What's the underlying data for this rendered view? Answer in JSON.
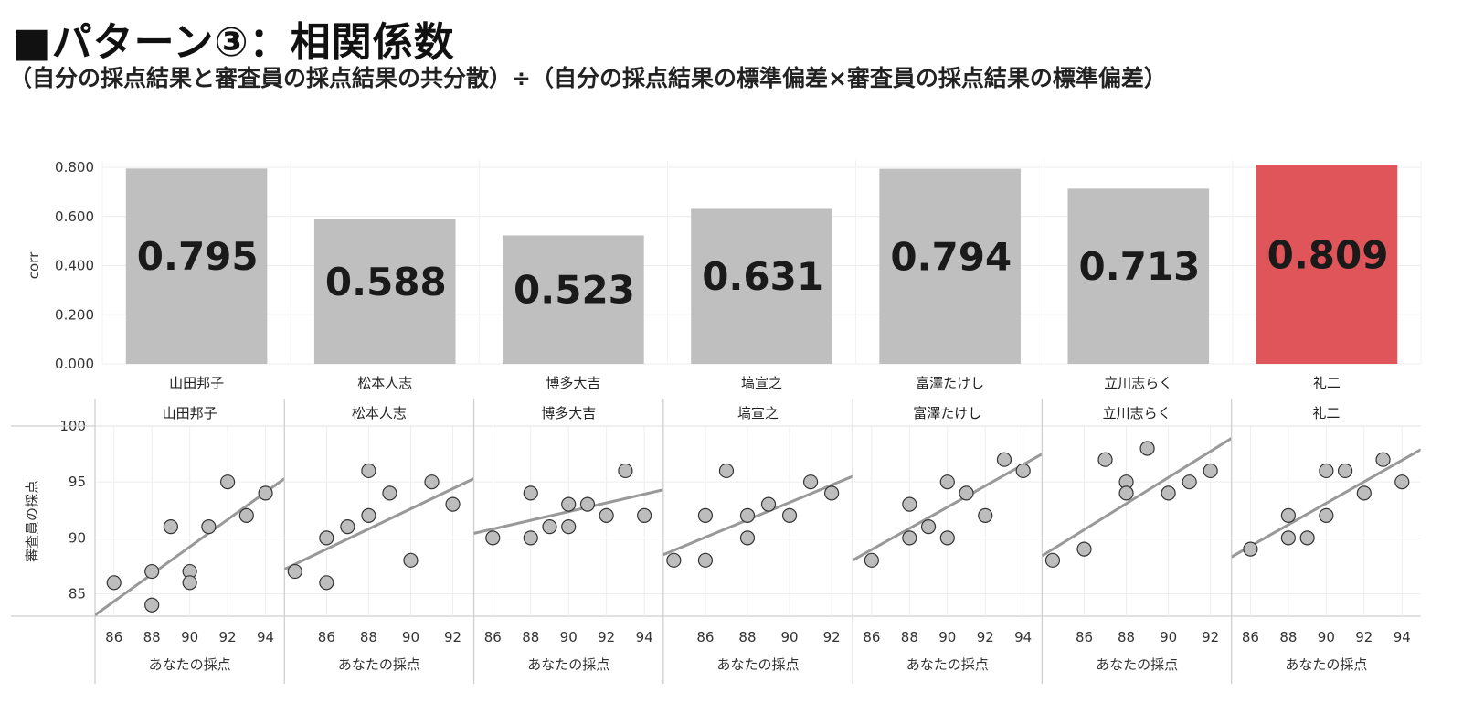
{
  "header": {
    "title": "■パターン③：相関係数",
    "subtitle": "（自分の採点結果と審査員の採点結果の共分散）÷（自分の採点結果の標準偏差×審査員の採点結果の標準偏差）"
  },
  "colors": {
    "bar_default": "#bfbfbf",
    "bar_highlight": "#e0555a",
    "point_fill": "#bdbdbd",
    "trend_line": "#999999"
  },
  "chart_data": [
    {
      "type": "bar",
      "categories": [
        "山田邦子",
        "松本人志",
        "博多大吉",
        "塙宣之",
        "富澤たけし",
        "立川志らく",
        "礼二"
      ],
      "values": [
        0.795,
        0.588,
        0.523,
        0.631,
        0.794,
        0.713,
        0.809
      ],
      "data_labels": [
        "0.795",
        "0.588",
        "0.523",
        "0.631",
        "0.794",
        "0.713",
        "0.809"
      ],
      "highlight": "礼二",
      "ylabel": "corr",
      "ylim": [
        0,
        0.8
      ],
      "yticks": [
        "0.000",
        "0.200",
        "0.400",
        "0.600",
        "0.800"
      ],
      "grid": true
    },
    {
      "type": "scatter",
      "xlabel": "あなたの採点",
      "ylabel": "審査員の採点",
      "ylim": [
        83,
        100
      ],
      "yticks": [
        "85",
        "90",
        "95",
        "100"
      ],
      "grid": true,
      "panels": [
        {
          "name": "山田邦子",
          "xlim": [
            85,
            95
          ],
          "xticks": [
            "86",
            "88",
            "90",
            "92",
            "94"
          ],
          "points": [
            [
              86,
              86
            ],
            [
              88,
              87
            ],
            [
              88,
              84
            ],
            [
              89,
              91
            ],
            [
              90,
              87
            ],
            [
              90,
              86
            ],
            [
              91,
              91
            ],
            [
              92,
              95
            ],
            [
              93,
              92
            ],
            [
              94,
              94
            ]
          ],
          "trend": [
            [
              85,
              83.1
            ],
            [
              95,
              95.3
            ]
          ]
        },
        {
          "name": "松本人志",
          "xlim": [
            84,
            93
          ],
          "xticks": [
            "86",
            "88",
            "90",
            "92"
          ],
          "points": [
            [
              84.5,
              87
            ],
            [
              86,
              90
            ],
            [
              86,
              86
            ],
            [
              87,
              91
            ],
            [
              88,
              96
            ],
            [
              88,
              92
            ],
            [
              89,
              94
            ],
            [
              90,
              88
            ],
            [
              91,
              95
            ],
            [
              92,
              93
            ]
          ],
          "trend": [
            [
              84,
              87.2
            ],
            [
              93,
              95.3
            ]
          ]
        },
        {
          "name": "博多大吉",
          "xlim": [
            85,
            95
          ],
          "xticks": [
            "86",
            "88",
            "90",
            "92",
            "94"
          ],
          "points": [
            [
              86,
              90
            ],
            [
              88,
              94
            ],
            [
              88,
              90
            ],
            [
              89,
              91
            ],
            [
              90,
              93
            ],
            [
              90,
              91
            ],
            [
              91,
              93
            ],
            [
              92,
              92
            ],
            [
              93,
              96
            ],
            [
              94,
              92
            ]
          ],
          "trend": [
            [
              85,
              90.4
            ],
            [
              95,
              94.3
            ]
          ]
        },
        {
          "name": "塙宣之",
          "xlim": [
            84,
            93
          ],
          "xticks": [
            "86",
            "88",
            "90",
            "92"
          ],
          "points": [
            [
              84.5,
              88
            ],
            [
              86,
              92
            ],
            [
              86,
              88
            ],
            [
              87,
              96
            ],
            [
              88,
              92
            ],
            [
              88,
              90
            ],
            [
              89,
              93
            ],
            [
              90,
              92
            ],
            [
              91,
              95
            ],
            [
              92,
              94
            ]
          ],
          "trend": [
            [
              84,
              88.5
            ],
            [
              93,
              95.5
            ]
          ]
        },
        {
          "name": "富澤たけし",
          "xlim": [
            85,
            95
          ],
          "xticks": [
            "86",
            "88",
            "90",
            "92",
            "94"
          ],
          "points": [
            [
              86,
              88
            ],
            [
              88,
              93
            ],
            [
              88,
              90
            ],
            [
              89,
              91
            ],
            [
              90,
              95
            ],
            [
              90,
              90
            ],
            [
              91,
              94
            ],
            [
              92,
              92
            ],
            [
              93,
              97
            ],
            [
              94,
              96
            ]
          ],
          "trend": [
            [
              85,
              88
            ],
            [
              95,
              97.5
            ]
          ]
        },
        {
          "name": "立川志らく",
          "xlim": [
            84,
            93
          ],
          "xticks": [
            "86",
            "88",
            "90",
            "92"
          ],
          "points": [
            [
              84.5,
              88
            ],
            [
              86,
              89
            ],
            [
              87,
              97
            ],
            [
              88,
              95
            ],
            [
              88,
              94
            ],
            [
              89,
              98
            ],
            [
              90,
              94
            ],
            [
              91,
              95
            ],
            [
              92,
              96
            ]
          ],
          "trend": [
            [
              84,
              88.4
            ],
            [
              93,
              98.9
            ]
          ]
        },
        {
          "name": "礼二",
          "xlim": [
            85,
            95
          ],
          "xticks": [
            "86",
            "88",
            "90",
            "92",
            "94"
          ],
          "points": [
            [
              86,
              89
            ],
            [
              88,
              92
            ],
            [
              88,
              90
            ],
            [
              89,
              90
            ],
            [
              90,
              96
            ],
            [
              90,
              92
            ],
            [
              91,
              96
            ],
            [
              92,
              94
            ],
            [
              93,
              97
            ],
            [
              94,
              95
            ]
          ],
          "trend": [
            [
              85,
              88.3
            ],
            [
              95,
              97.9
            ]
          ]
        }
      ]
    }
  ]
}
